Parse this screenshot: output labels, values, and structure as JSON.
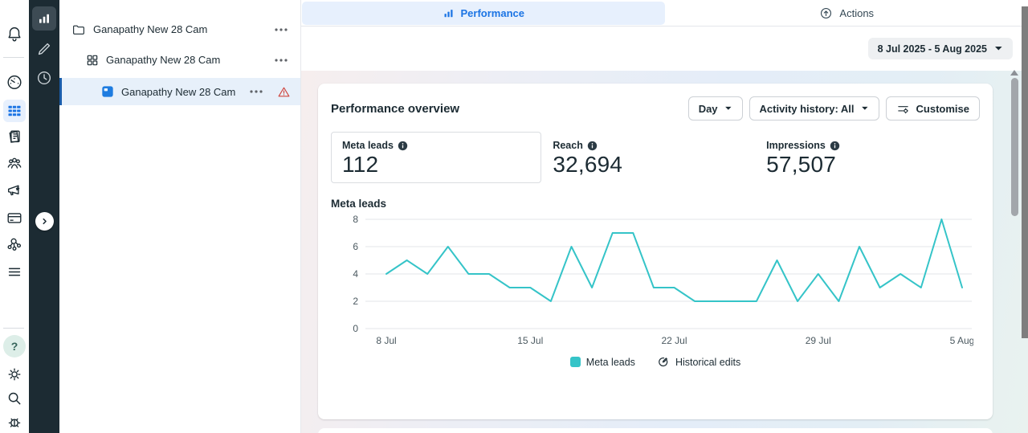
{
  "left_rail": {
    "help_glyph": "?"
  },
  "tree": {
    "rows": [
      {
        "type": "campaign",
        "label": "Ganapathy New 28 Cam"
      },
      {
        "type": "adset",
        "label": "Ganapathy New 28 Cam"
      },
      {
        "type": "ad",
        "label": "Ganapathy New 28 Cam",
        "selected": true,
        "warning": true
      }
    ]
  },
  "tabs": {
    "performance": "Performance",
    "actions": "Actions"
  },
  "toolbar": {
    "date_range": "8 Jul 2025 - 5 Aug 2025"
  },
  "overview": {
    "title": "Performance overview",
    "buttons": {
      "granularity": "Day",
      "activity_history": "Activity history: All",
      "customise": "Customise"
    },
    "metrics": [
      {
        "label": "Meta leads",
        "value": "112"
      },
      {
        "label": "Reach",
        "value": "32,694"
      },
      {
        "label": "Impressions",
        "value": "57,507"
      }
    ],
    "chart_title": "Meta leads",
    "legend": [
      {
        "label": "Meta leads",
        "swatch_color": "#35c4c8"
      },
      {
        "label": "Historical edits"
      }
    ]
  },
  "chart_data": {
    "type": "line",
    "title": "Meta leads",
    "x": [
      "8 Jul",
      "9 Jul",
      "10 Jul",
      "11 Jul",
      "12 Jul",
      "13 Jul",
      "14 Jul",
      "15 Jul",
      "16 Jul",
      "17 Jul",
      "18 Jul",
      "19 Jul",
      "20 Jul",
      "21 Jul",
      "22 Jul",
      "23 Jul",
      "24 Jul",
      "25 Jul",
      "26 Jul",
      "27 Jul",
      "28 Jul",
      "29 Jul",
      "30 Jul",
      "31 Jul",
      "1 Aug",
      "2 Aug",
      "3 Aug",
      "4 Aug",
      "5 Aug"
    ],
    "series": [
      {
        "name": "Meta leads",
        "color": "#35c4c8",
        "values": [
          4,
          5,
          4,
          6,
          4,
          4,
          3,
          3,
          2,
          6,
          3,
          7,
          7,
          3,
          3,
          2,
          2,
          2,
          2,
          5,
          2,
          4,
          2,
          6,
          3,
          4,
          3,
          8,
          3
        ]
      }
    ],
    "x_tick_indices": [
      0,
      7,
      14,
      21,
      28
    ],
    "x_tick_labels": [
      "8 Jul",
      "15 Jul",
      "22 Jul",
      "29 Jul",
      "5 Aug"
    ],
    "y_ticks": [
      0,
      2,
      4,
      6,
      8
    ],
    "ylim": [
      0,
      8
    ],
    "grid": true,
    "legend_position": "bottom"
  },
  "colors": {
    "accent_blue": "#1b74e4",
    "teal": "#35c4c8",
    "warning_red": "#d0443c",
    "dark_rail_bg": "#1c2b33",
    "active_tab_bg": "#e7f0fd",
    "selected_row_bg": "#e7f0fa"
  }
}
